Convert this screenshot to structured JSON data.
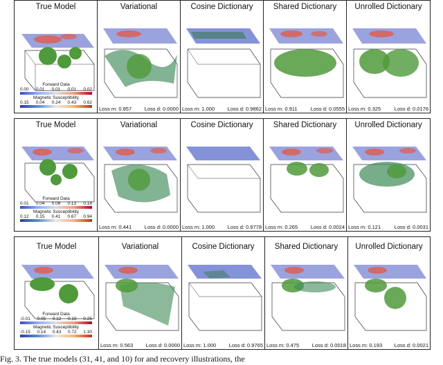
{
  "figure": {
    "panel_titles": [
      "True Model",
      "Variational",
      "Cosine Dictionary",
      "Shared Dictionary",
      "Unrolled Dictionary"
    ],
    "legend_titles": {
      "forward": "Forward Data",
      "magnetic": "Magnetic Susceptibility"
    },
    "rows": [
      {
        "forward_ticks": [
          "0.00",
          "0.01",
          "0.01",
          "0.01",
          "0.02"
        ],
        "magnetic_ticks": [
          "0.15",
          "0.04",
          "0.24",
          "0.43",
          "0.62"
        ],
        "losses": [
          {
            "m": "Loss m: 0.857",
            "d": "Loss d: 0.0000"
          },
          {
            "m": "Loss m: 1.000",
            "d": "Loss d: 0.9862"
          },
          {
            "m": "Loss m: 0.911",
            "d": "Loss d: 0.0555"
          },
          {
            "m": "Loss m: 0.325",
            "d": "Loss d: 0.0176"
          }
        ]
      },
      {
        "forward_ticks": [
          "0.01",
          "0.04",
          "0.08",
          "0.13",
          "0.18"
        ],
        "magnetic_ticks": [
          "0.12",
          "0.15",
          "0.41",
          "0.67",
          "0.94"
        ],
        "losses": [
          {
            "m": "Loss m: 0.441",
            "d": "Loss d: 0.0000"
          },
          {
            "m": "Loss m: 1.000",
            "d": "Loss d: 0.9778"
          },
          {
            "m": "Loss m: 0.265",
            "d": "Loss d: 0.0024"
          },
          {
            "m": "Loss m: 0.121",
            "d": "Loss d: 0.0031"
          }
        ]
      },
      {
        "forward_ticks": [
          "-0.01",
          "0.05",
          "0.12",
          "0.19",
          "0.25"
        ],
        "magnetic_ticks": [
          "-0.15",
          "0.14",
          "0.43",
          "0.72",
          "1.30"
        ],
        "losses": [
          {
            "m": "Loss m: 0.563",
            "d": "Loss d: 0.0000"
          },
          {
            "m": "Loss m: 1.000",
            "d": "Loss d: 0.9765"
          },
          {
            "m": "Loss m: 0.475",
            "d": "Loss d: 0.0018"
          },
          {
            "m": "Loss m: 0.193",
            "d": "Loss d: 0.0021"
          }
        ]
      }
    ],
    "caption": "Fig. 3. The true models (31, 41, and 10) for and recovery illustrations, the"
  }
}
